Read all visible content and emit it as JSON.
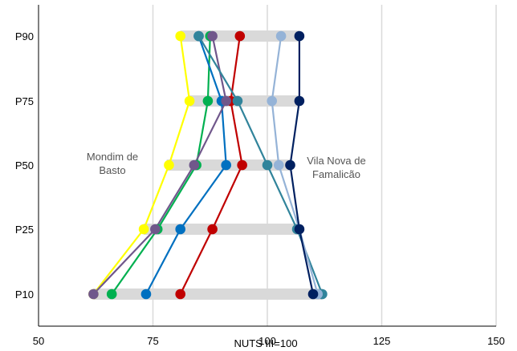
{
  "chart_data": {
    "type": "line",
    "xlabel": "NUTS III=100",
    "xlim": [
      50,
      150
    ],
    "x_ticks": [
      50,
      75,
      100,
      125,
      150
    ],
    "x_tick_labels": [
      "50",
      "75",
      "100",
      "125",
      "150"
    ],
    "categories": [
      "P90",
      "P75",
      "P50",
      "P25",
      "P10"
    ],
    "range_bars": [
      {
        "category": "P90",
        "min": 81,
        "max": 107
      },
      {
        "category": "P75",
        "min": 83,
        "max": 107
      },
      {
        "category": "P50",
        "min": 78,
        "max": 105
      },
      {
        "category": "P25",
        "min": 73,
        "max": 107
      },
      {
        "category": "P10",
        "min": 62,
        "max": 112
      }
    ],
    "series": [
      {
        "color": "#ffff00",
        "values": {
          "P90": 81,
          "P75": 83,
          "P50": 78.5,
          "P25": 73,
          "P10": 62
        }
      },
      {
        "color": "#00b050",
        "values": {
          "P90": 87.5,
          "P75": 87,
          "P50": 84.5,
          "P25": 76,
          "P10": 66
        }
      },
      {
        "color": "#0070c0",
        "values": {
          "P90": 85,
          "P75": 90,
          "P50": 91,
          "P25": 81,
          "P10": 73.5
        }
      },
      {
        "color": "#c00000",
        "values": {
          "P90": 94,
          "P75": 92,
          "P50": 94.5,
          "P25": 88,
          "P10": 81
        }
      },
      {
        "color": "#70578b",
        "values": {
          "P90": 88,
          "P75": 91,
          "P50": 84,
          "P25": 75.5,
          "P10": 62
        }
      },
      {
        "color": "#31849b",
        "values": {
          "P90": 85,
          "P75": 93.5,
          "P50": 100,
          "P25": 106.5,
          "P10": 112
        }
      },
      {
        "color": "#95b3d7",
        "values": {
          "P90": 103,
          "P75": 101,
          "P50": 102.5,
          "P25": 107,
          "P10": 111
        }
      },
      {
        "color": "#002060",
        "values": {
          "P90": 107,
          "P75": 107,
          "P50": 105,
          "P25": 107,
          "P10": 110
        }
      }
    ],
    "annotations": [
      {
        "lines": [
          "Mondim de",
          "Basto"
        ]
      },
      {
        "lines": [
          "Vila Nova de",
          "Famalicão"
        ]
      }
    ],
    "grid": true
  }
}
